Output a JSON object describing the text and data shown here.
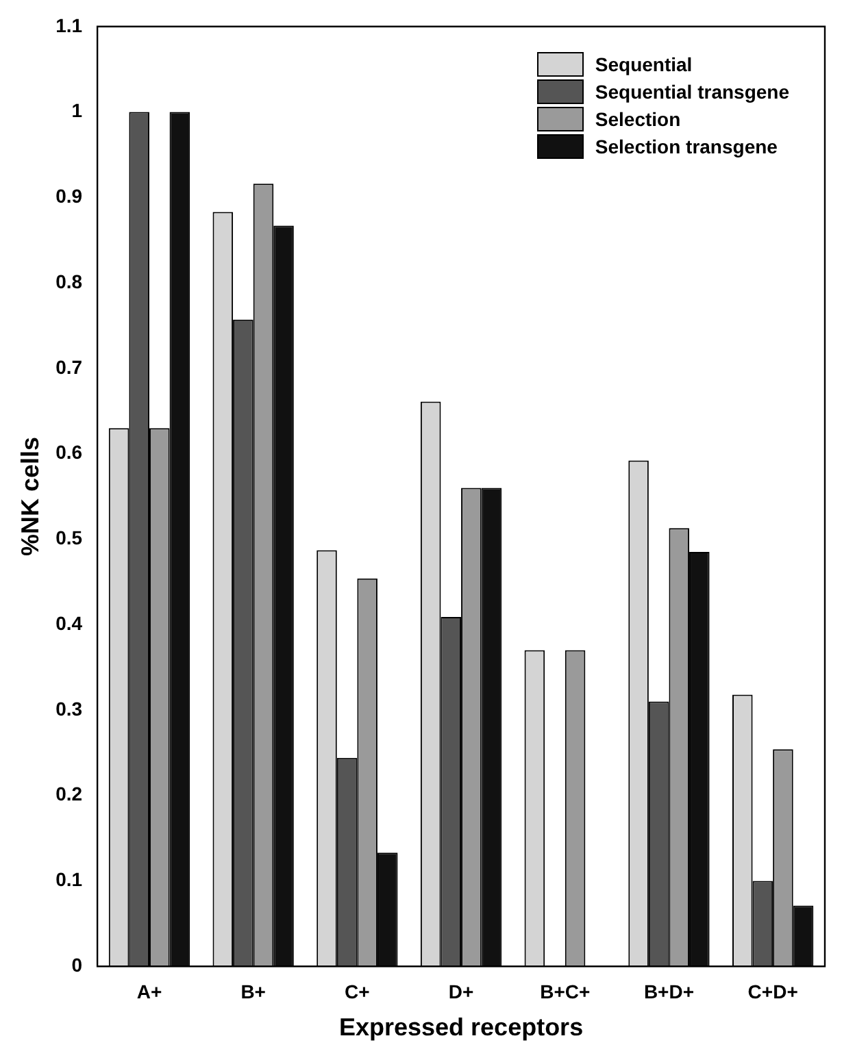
{
  "chart_data": {
    "type": "bar",
    "xlabel": "Expressed receptors",
    "ylabel": "%NK cells",
    "categories": [
      "A+",
      "B+",
      "C+",
      "D+",
      "B+C+",
      "B+D+",
      "C+D+"
    ],
    "series": [
      {
        "name": "Sequential",
        "color": "#d4d4d4",
        "values": [
          0.63,
          0.883,
          0.487,
          0.661,
          0.37,
          0.592,
          0.318
        ]
      },
      {
        "name": "Sequential transgene",
        "color": "#555555",
        "values": [
          1.0,
          0.757,
          0.244,
          0.409,
          null,
          0.31,
          0.1
        ]
      },
      {
        "name": "Selection",
        "color": "#9a9a9a",
        "values": [
          0.63,
          0.916,
          0.454,
          0.56,
          0.37,
          0.513,
          0.254
        ]
      },
      {
        "name": "Selection transgene",
        "color": "#111111",
        "values": [
          1.0,
          0.867,
          0.133,
          0.56,
          null,
          0.485,
          0.071
        ]
      }
    ],
    "ylim": [
      0,
      1.1
    ],
    "yticks": [
      0,
      0.1,
      0.2,
      0.3,
      0.4,
      0.5,
      0.6,
      0.7,
      0.8,
      0.9,
      1,
      1.1
    ],
    "grid": false,
    "legend": "top right"
  }
}
